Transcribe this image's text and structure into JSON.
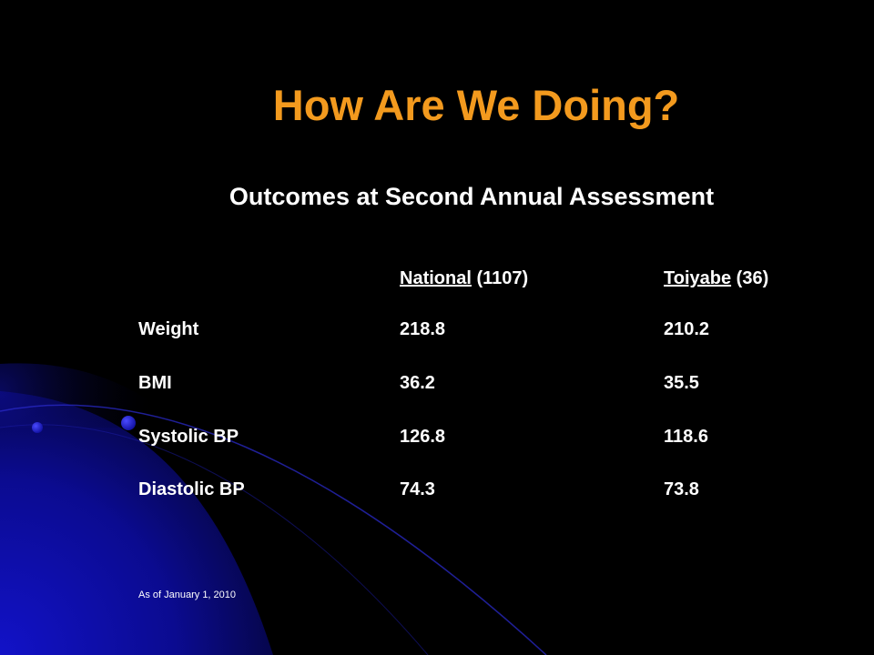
{
  "slide": {
    "title": "How Are We Doing?",
    "subtitle": "Outcomes at Second Annual Assessment",
    "table": {
      "headers": [
        {
          "name": "National",
          "count": "(1107)"
        },
        {
          "name": "Toiyabe",
          "count": "(36)"
        }
      ],
      "rows": [
        {
          "label": "Weight",
          "national": "218.8",
          "toiyabe": "210.2"
        },
        {
          "label": "BMI",
          "national": "36.2",
          "toiyabe": "35.5"
        },
        {
          "label": "Systolic BP",
          "national": "126.8",
          "toiyabe": "118.6"
        },
        {
          "label": "Diastolic BP",
          "national": "74.3",
          "toiyabe": "73.8"
        }
      ]
    },
    "footnote": "As of January 1, 2010"
  },
  "colors": {
    "background": "#000000",
    "title": "#F39A1E",
    "text": "#FFFFFF",
    "accent": "#1A1AD6"
  }
}
